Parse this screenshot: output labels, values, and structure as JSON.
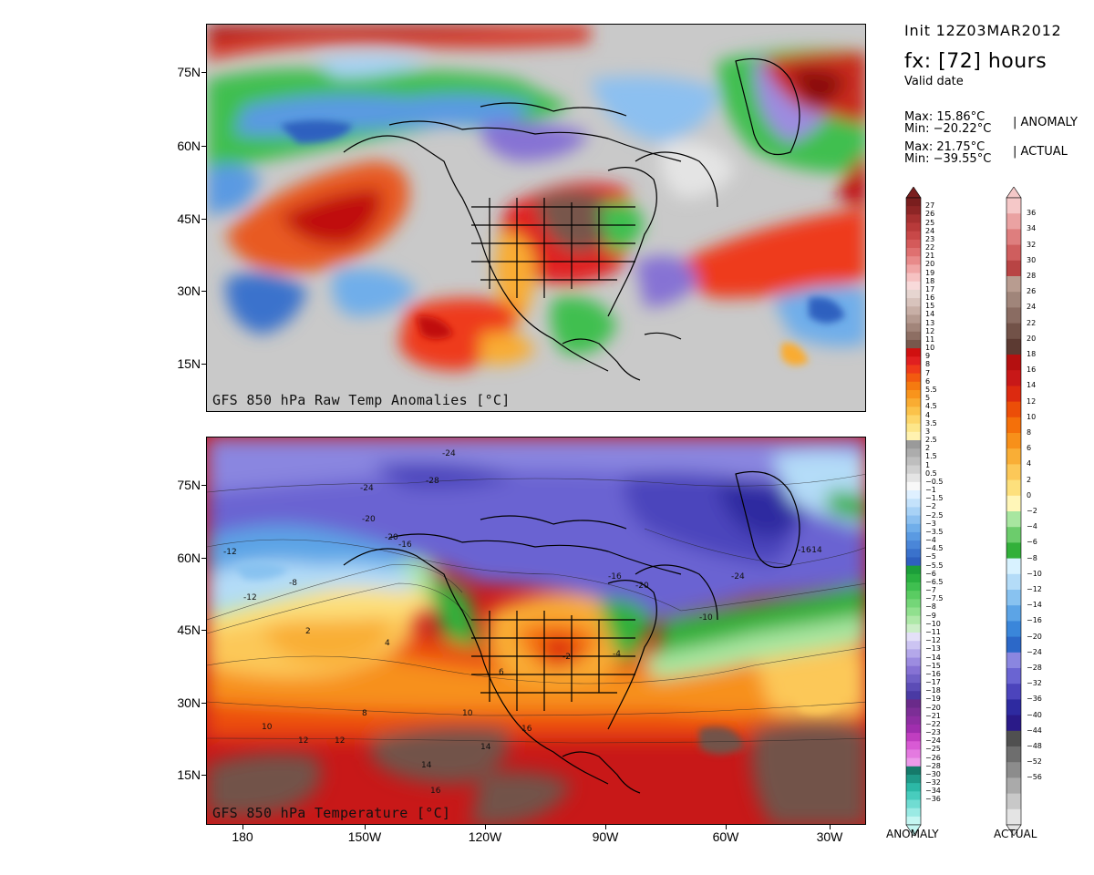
{
  "header": {
    "init": "Init 12Z03MAR2012",
    "fx": "fx: [72] hours",
    "valid": "Valid date",
    "anomaly_max": "Max: 15.86°C",
    "anomaly_min": "Min: −20.22°C",
    "anomaly_tag": "| ANOMALY",
    "actual_max": "Max: 21.75°C",
    "actual_min": "Min: −39.55°C",
    "actual_tag": "| ACTUAL"
  },
  "panels": {
    "top_title": "GFS 850 hPa Raw Temp Anomalies [°C]",
    "bottom_title": "GFS 850 hPa Temperature [°C]"
  },
  "axes": {
    "lat_labels": [
      "75N",
      "60N",
      "45N",
      "30N",
      "15N"
    ],
    "lon_labels": [
      "180",
      "150W",
      "120W",
      "90W",
      "60W",
      "30W"
    ]
  },
  "map_labels": [
    "-24",
    "-28",
    "-24",
    "-20",
    "-16",
    "-20",
    "-12",
    "-12",
    "-8",
    "-16",
    "-20",
    "-24",
    "-16",
    "-14",
    "-10",
    "-4",
    "-2",
    "2",
    "4",
    "6",
    "8",
    "10",
    "12",
    "14",
    "16",
    "10",
    "12",
    "14",
    "16"
  ],
  "colorbars": {
    "anomaly_title": "ANOMALY",
    "actual_title": "ACTUAL",
    "anomaly_labels": [
      "27",
      "26",
      "25",
      "24",
      "23",
      "22",
      "21",
      "20",
      "19",
      "18",
      "17",
      "16",
      "15",
      "14",
      "13",
      "12",
      "11",
      "10",
      "9",
      "8",
      "7",
      "6",
      "5.5",
      "5",
      "4.5",
      "4",
      "3.5",
      "3",
      "2.5",
      "2",
      "1.5",
      "1",
      "0.5",
      "−0.5",
      "−1",
      "−1.5",
      "−2",
      "−2.5",
      "−3",
      "−3.5",
      "−4",
      "−4.5",
      "−5",
      "−5.5",
      "−6",
      "−6.5",
      "−7",
      "−7.5",
      "−8",
      "−9",
      "−10",
      "−11",
      "−12",
      "−13",
      "−14",
      "−15",
      "−16",
      "−17",
      "−18",
      "−19",
      "−20",
      "−21",
      "−22",
      "−23",
      "−24",
      "−25",
      "−26",
      "−28",
      "−30",
      "−32",
      "−34",
      "−36"
    ],
    "anomaly_colors": [
      "#7a1e1e",
      "#8d2525",
      "#a63030",
      "#b83a3a",
      "#c84848",
      "#d45a5a",
      "#df7070",
      "#e88a8a",
      "#f0a6a6",
      "#f6c2c2",
      "#f8dada",
      "#e6d5d0",
      "#d8c3bc",
      "#c8afa6",
      "#b59a90",
      "#a2857a",
      "#8d6e63",
      "#78574c",
      "#d01010",
      "#e02020",
      "#ee3a1a",
      "#f25a10",
      "#f57a10",
      "#f8941c",
      "#f9ac32",
      "#fbc24a",
      "#fdd66a",
      "#fde68a",
      "#fff2b0",
      "#9a9a9a",
      "#acacac",
      "#bebebe",
      "#d0d0d0",
      "#e4e4e4",
      "#f8f8f8",
      "#dff0ff",
      "#c4e2fb",
      "#a8d2f6",
      "#8cc0f0",
      "#70aeea",
      "#5a9ae2",
      "#4a86d8",
      "#3a72cc",
      "#2e60bf",
      "#1c9e3a",
      "#2ab040",
      "#3fbf50",
      "#5acc62",
      "#74d678",
      "#90e08e",
      "#aee8a8",
      "#cceec8",
      "#e4e0f8",
      "#ccc4f2",
      "#b4a8ea",
      "#9c8ce0",
      "#8672d4",
      "#7060c6",
      "#5c4cb6",
      "#4a3aa4",
      "#6a2a8a",
      "#7c2e96",
      "#8e2ea2",
      "#a02eae",
      "#c03ec0",
      "#d85ad4",
      "#e47ae0",
      "#ec9aea",
      "#157a6a",
      "#1f9a88",
      "#2cb8a6",
      "#48ccbd",
      "#70dcd2",
      "#9aeae4",
      "#c4f6f2"
    ],
    "actual_labels": [
      "36",
      "34",
      "32",
      "30",
      "28",
      "26",
      "24",
      "22",
      "20",
      "18",
      "16",
      "14",
      "12",
      "10",
      "8",
      "6",
      "4",
      "2",
      "0",
      "−2",
      "−4",
      "−6",
      "−8",
      "−10",
      "−12",
      "−14",
      "−16",
      "−20",
      "−24",
      "−28",
      "−32",
      "−36",
      "−40",
      "−44",
      "−48",
      "−52",
      "−56"
    ],
    "actual_colors": [
      "#f5c8c8",
      "#eaa2a2",
      "#de7e7e",
      "#cf5e5e",
      "#b84444",
      "#b89c90",
      "#a0857a",
      "#8a6c62",
      "#725248",
      "#5c3a32",
      "#b41010",
      "#c81818",
      "#dc2a10",
      "#ec4e08",
      "#f4700a",
      "#f7901a",
      "#f9ae36",
      "#fcc858",
      "#fde07c",
      "#fff6b8",
      "#a8e6a0",
      "#6ccc6c",
      "#32b03a",
      "#d8f2ff",
      "#b4dcf8",
      "#88c2f0",
      "#5ca4e6",
      "#3a86da",
      "#2c68c8",
      "#8a86e0",
      "#6a64d2",
      "#4c44bc",
      "#2e2aa0",
      "#2a1a88",
      "#505050",
      "#6e6e6e",
      "#8c8c8c",
      "#aaaaaa",
      "#c8c8c8",
      "#e4e4e4"
    ]
  }
}
